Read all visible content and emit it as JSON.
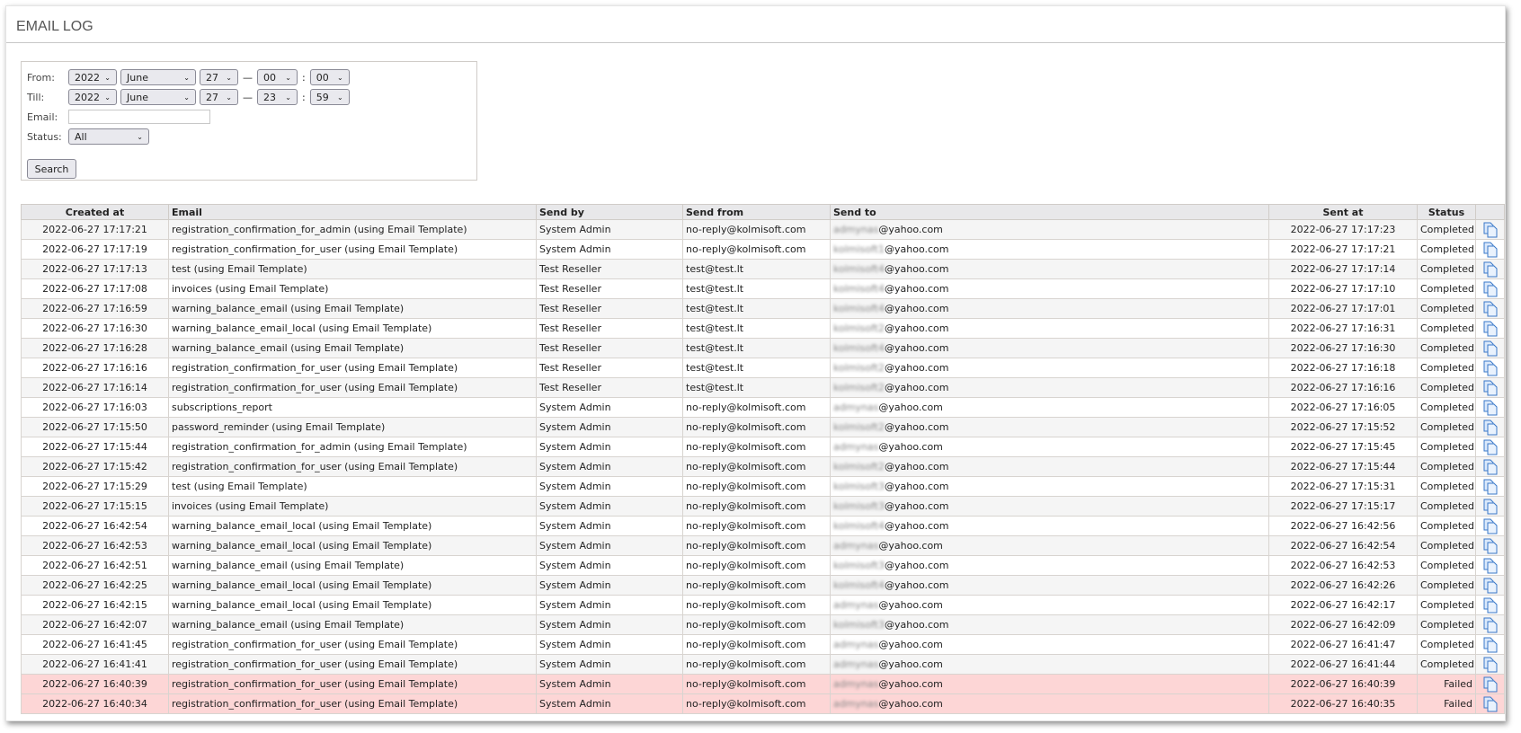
{
  "page_title": "EMAIL LOG",
  "filter": {
    "from_label": "From:",
    "till_label": "Till:",
    "email_label": "Email:",
    "status_label": "Status:",
    "from": {
      "year": "2022",
      "month": "June",
      "day": "27",
      "hour": "00",
      "minute": "00"
    },
    "till": {
      "year": "2022",
      "month": "June",
      "day": "27",
      "hour": "23",
      "minute": "59"
    },
    "dash": "—",
    "colon": ":",
    "email_value": "",
    "status": "All",
    "search_label": "Search"
  },
  "table": {
    "columns": [
      "Created at",
      "Email",
      "Send by",
      "Send from",
      "Send to",
      "Sent at",
      "Status",
      ""
    ],
    "template_suffix": "(using Email Template)",
    "rows": [
      {
        "created": "2022-06-27 17:17:21",
        "email": "registration_confirmation_for_admin",
        "tpl": true,
        "by": "System Admin",
        "from": "no-reply@kolmisoft.com",
        "to_local": "admynas",
        "to_domain": "@yahoo.com",
        "sent": "2022-06-27 17:17:23",
        "status": "Completed"
      },
      {
        "created": "2022-06-27 17:17:19",
        "email": "registration_confirmation_for_user",
        "tpl": true,
        "by": "System Admin",
        "from": "no-reply@kolmisoft.com",
        "to_local": "kolmisoft1",
        "to_domain": "@yahoo.com",
        "sent": "2022-06-27 17:17:21",
        "status": "Completed"
      },
      {
        "created": "2022-06-27 17:17:13",
        "email": "test",
        "tpl": true,
        "by": "Test Reseller",
        "from": "test@test.lt",
        "to_local": "kolmisoft4",
        "to_domain": "@yahoo.com",
        "sent": "2022-06-27 17:17:14",
        "status": "Completed"
      },
      {
        "created": "2022-06-27 17:17:08",
        "email": "invoices",
        "tpl": true,
        "by": "Test Reseller",
        "from": "test@test.lt",
        "to_local": "kolmisoft4",
        "to_domain": "@yahoo.com",
        "sent": "2022-06-27 17:17:10",
        "status": "Completed"
      },
      {
        "created": "2022-06-27 17:16:59",
        "email": "warning_balance_email",
        "tpl": true,
        "by": "Test Reseller",
        "from": "test@test.lt",
        "to_local": "kolmisoft4",
        "to_domain": "@yahoo.com",
        "sent": "2022-06-27 17:17:01",
        "status": "Completed"
      },
      {
        "created": "2022-06-27 17:16:30",
        "email": "warning_balance_email_local",
        "tpl": true,
        "by": "Test Reseller",
        "from": "test@test.lt",
        "to_local": "kolmisoft2",
        "to_domain": "@yahoo.com",
        "sent": "2022-06-27 17:16:31",
        "status": "Completed"
      },
      {
        "created": "2022-06-27 17:16:28",
        "email": "warning_balance_email",
        "tpl": true,
        "by": "Test Reseller",
        "from": "test@test.lt",
        "to_local": "kolmisoft4",
        "to_domain": "@yahoo.com",
        "sent": "2022-06-27 17:16:30",
        "status": "Completed"
      },
      {
        "created": "2022-06-27 17:16:16",
        "email": "registration_confirmation_for_user",
        "tpl": true,
        "by": "Test Reseller",
        "from": "test@test.lt",
        "to_local": "kolmisoft2",
        "to_domain": "@yahoo.com",
        "sent": "2022-06-27 17:16:18",
        "status": "Completed"
      },
      {
        "created": "2022-06-27 17:16:14",
        "email": "registration_confirmation_for_user",
        "tpl": true,
        "by": "Test Reseller",
        "from": "test@test.lt",
        "to_local": "kolmisoft2",
        "to_domain": "@yahoo.com",
        "sent": "2022-06-27 17:16:16",
        "status": "Completed"
      },
      {
        "created": "2022-06-27 17:16:03",
        "email": "subscriptions_report",
        "tpl": false,
        "by": "System Admin",
        "from": "no-reply@kolmisoft.com",
        "to_local": "admynas",
        "to_domain": "@yahoo.com",
        "sent": "2022-06-27 17:16:05",
        "status": "Completed"
      },
      {
        "created": "2022-06-27 17:15:50",
        "email": "password_reminder",
        "tpl": true,
        "by": "System Admin",
        "from": "no-reply@kolmisoft.com",
        "to_local": "kolmisoft2",
        "to_domain": "@yahoo.com",
        "sent": "2022-06-27 17:15:52",
        "status": "Completed"
      },
      {
        "created": "2022-06-27 17:15:44",
        "email": "registration_confirmation_for_admin",
        "tpl": true,
        "by": "System Admin",
        "from": "no-reply@kolmisoft.com",
        "to_local": "admynas",
        "to_domain": "@yahoo.com",
        "sent": "2022-06-27 17:15:45",
        "status": "Completed"
      },
      {
        "created": "2022-06-27 17:15:42",
        "email": "registration_confirmation_for_user",
        "tpl": true,
        "by": "System Admin",
        "from": "no-reply@kolmisoft.com",
        "to_local": "kolmisoft2",
        "to_domain": "@yahoo.com",
        "sent": "2022-06-27 17:15:44",
        "status": "Completed"
      },
      {
        "created": "2022-06-27 17:15:29",
        "email": "test",
        "tpl": true,
        "by": "System Admin",
        "from": "no-reply@kolmisoft.com",
        "to_local": "kolmisoft3",
        "to_domain": "@yahoo.com",
        "sent": "2022-06-27 17:15:31",
        "status": "Completed"
      },
      {
        "created": "2022-06-27 17:15:15",
        "email": "invoices",
        "tpl": true,
        "by": "System Admin",
        "from": "no-reply@kolmisoft.com",
        "to_local": "kolmisoft3",
        "to_domain": "@yahoo.com",
        "sent": "2022-06-27 17:15:17",
        "status": "Completed"
      },
      {
        "created": "2022-06-27 16:42:54",
        "email": "warning_balance_email_local",
        "tpl": true,
        "by": "System Admin",
        "from": "no-reply@kolmisoft.com",
        "to_local": "kolmisoft4",
        "to_domain": "@yahoo.com",
        "sent": "2022-06-27 16:42:56",
        "status": "Completed"
      },
      {
        "created": "2022-06-27 16:42:53",
        "email": "warning_balance_email_local",
        "tpl": true,
        "by": "System Admin",
        "from": "no-reply@kolmisoft.com",
        "to_local": "admynas",
        "to_domain": "@yahoo.com",
        "sent": "2022-06-27 16:42:54",
        "status": "Completed"
      },
      {
        "created": "2022-06-27 16:42:51",
        "email": "warning_balance_email",
        "tpl": true,
        "by": "System Admin",
        "from": "no-reply@kolmisoft.com",
        "to_local": "kolmisoft3",
        "to_domain": "@yahoo.com",
        "sent": "2022-06-27 16:42:53",
        "status": "Completed"
      },
      {
        "created": "2022-06-27 16:42:25",
        "email": "warning_balance_email_local",
        "tpl": true,
        "by": "System Admin",
        "from": "no-reply@kolmisoft.com",
        "to_local": "kolmisoft4",
        "to_domain": "@yahoo.com",
        "sent": "2022-06-27 16:42:26",
        "status": "Completed"
      },
      {
        "created": "2022-06-27 16:42:15",
        "email": "warning_balance_email_local",
        "tpl": true,
        "by": "System Admin",
        "from": "no-reply@kolmisoft.com",
        "to_local": "admynas",
        "to_domain": "@yahoo.com",
        "sent": "2022-06-27 16:42:17",
        "status": "Completed"
      },
      {
        "created": "2022-06-27 16:42:07",
        "email": "warning_balance_email",
        "tpl": true,
        "by": "System Admin",
        "from": "no-reply@kolmisoft.com",
        "to_local": "kolmisoft3",
        "to_domain": "@yahoo.com",
        "sent": "2022-06-27 16:42:09",
        "status": "Completed"
      },
      {
        "created": "2022-06-27 16:41:45",
        "email": "registration_confirmation_for_user",
        "tpl": true,
        "by": "System Admin",
        "from": "no-reply@kolmisoft.com",
        "to_local": "admynas",
        "to_domain": "@yahoo.com",
        "sent": "2022-06-27 16:41:47",
        "status": "Completed"
      },
      {
        "created": "2022-06-27 16:41:41",
        "email": "registration_confirmation_for_user",
        "tpl": true,
        "by": "System Admin",
        "from": "no-reply@kolmisoft.com",
        "to_local": "admynas",
        "to_domain": "@yahoo.com",
        "sent": "2022-06-27 16:41:44",
        "status": "Completed"
      },
      {
        "created": "2022-06-27 16:40:39",
        "email": "registration_confirmation_for_user",
        "tpl": true,
        "by": "System Admin",
        "from": "no-reply@kolmisoft.com",
        "to_local": "admynas",
        "to_domain": "@yahoo.com",
        "sent": "2022-06-27 16:40:39",
        "status": "Failed"
      },
      {
        "created": "2022-06-27 16:40:34",
        "email": "registration_confirmation_for_user",
        "tpl": true,
        "by": "System Admin",
        "from": "no-reply@kolmisoft.com",
        "to_local": "admynas",
        "to_domain": "@yahoo.com",
        "sent": "2022-06-27 16:40:35",
        "status": "Failed"
      }
    ]
  },
  "colors": {
    "failed_row": "#fdd6d6",
    "header_bg": "#e8e8ea",
    "icon_blue": "#3a78c8"
  },
  "row_action_icon": "copy-document-icon"
}
